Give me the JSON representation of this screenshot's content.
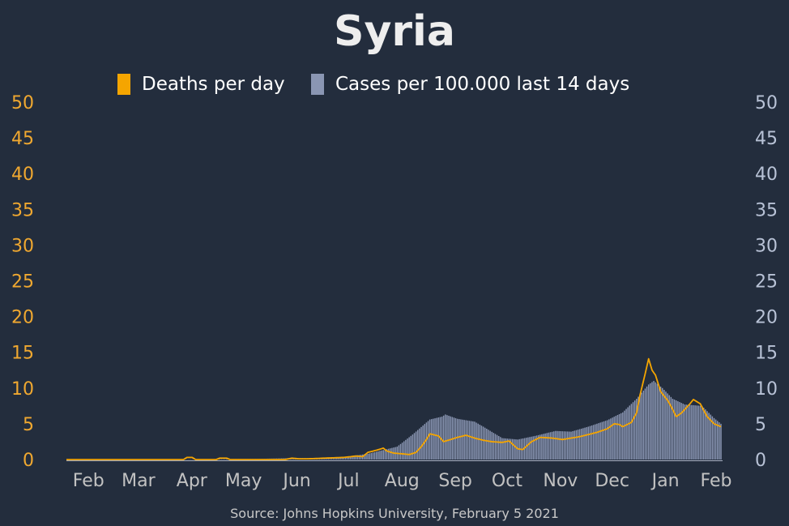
{
  "chart_data": {
    "type": "bar+line",
    "title": "Syria",
    "source": "Source: Johns Hopkins University, February 5 2021",
    "legend": [
      {
        "label": "Deaths per day",
        "color": "#f5a500",
        "type": "line",
        "axis": "left"
      },
      {
        "label": "Cases per 100.000 last 14 days",
        "color": "#8a96b3",
        "type": "bar",
        "axis": "right"
      }
    ],
    "legend_position": "top-center",
    "y_left": {
      "min": 0,
      "max": 50,
      "ticks": [
        "0",
        "5",
        "10",
        "15",
        "20",
        "25",
        "30",
        "35",
        "40",
        "45",
        "50"
      ],
      "color": "#f0a830"
    },
    "y_right": {
      "min": 0,
      "max": 50,
      "ticks": [
        "0",
        "5",
        "10",
        "15",
        "20",
        "25",
        "30",
        "35",
        "40",
        "45",
        "50"
      ],
      "color": "#b8c2d6"
    },
    "x_axis": {
      "start": "2020-01-22",
      "end": "2021-02-05",
      "ticks": [
        {
          "label": "Feb",
          "date": "2020-02-01"
        },
        {
          "label": "Mar",
          "date": "2020-03-01"
        },
        {
          "label": "Apr",
          "date": "2020-04-01"
        },
        {
          "label": "May",
          "date": "2020-05-01"
        },
        {
          "label": "Jun",
          "date": "2020-06-01"
        },
        {
          "label": "Jul",
          "date": "2020-07-01"
        },
        {
          "label": "Aug",
          "date": "2020-08-01"
        },
        {
          "label": "Sep",
          "date": "2020-09-01"
        },
        {
          "label": "Oct",
          "date": "2020-10-01"
        },
        {
          "label": "Nov",
          "date": "2020-11-01"
        },
        {
          "label": "Dec",
          "date": "2020-12-01"
        },
        {
          "label": "Jan",
          "date": "2021-01-01"
        },
        {
          "label": "Feb",
          "date": "2021-02-01"
        }
      ]
    },
    "grid": false,
    "series": [
      {
        "name": "Cases per 100.000 last 14 days",
        "type": "bar",
        "axis": "right",
        "color": "#8a96b3",
        "points": [
          [
            "2020-01-22",
            0
          ],
          [
            "2020-03-22",
            0
          ],
          [
            "2020-04-10",
            0.05
          ],
          [
            "2020-05-10",
            0.08
          ],
          [
            "2020-06-01",
            0.2
          ],
          [
            "2020-06-15",
            0.2
          ],
          [
            "2020-07-01",
            0.35
          ],
          [
            "2020-07-15",
            0.8
          ],
          [
            "2020-08-01",
            1.8
          ],
          [
            "2020-08-10",
            3.5
          ],
          [
            "2020-08-20",
            5.6
          ],
          [
            "2020-08-27",
            6.0
          ],
          [
            "2020-08-29",
            6.3
          ],
          [
            "2020-09-05",
            5.7
          ],
          [
            "2020-09-15",
            5.3
          ],
          [
            "2020-09-20",
            4.6
          ],
          [
            "2020-10-01",
            3.0
          ],
          [
            "2020-10-10",
            2.8
          ],
          [
            "2020-10-20",
            3.3
          ],
          [
            "2020-11-01",
            4.0
          ],
          [
            "2020-11-10",
            3.9
          ],
          [
            "2020-11-20",
            4.6
          ],
          [
            "2020-12-01",
            5.5
          ],
          [
            "2020-12-10",
            6.6
          ],
          [
            "2020-12-18",
            8.5
          ],
          [
            "2020-12-25",
            10.5
          ],
          [
            "2020-12-28",
            11.0
          ],
          [
            "2021-01-02",
            10.0
          ],
          [
            "2021-01-08",
            8.5
          ],
          [
            "2021-01-15",
            7.7
          ],
          [
            "2021-01-25",
            7.5
          ],
          [
            "2021-02-01",
            5.8
          ],
          [
            "2021-02-05",
            5.0
          ]
        ]
      },
      {
        "name": "Deaths per day",
        "type": "line",
        "axis": "left",
        "color": "#f5a500",
        "points": [
          [
            "2020-01-22",
            0
          ],
          [
            "2020-03-30",
            0
          ],
          [
            "2020-04-01",
            0.3
          ],
          [
            "2020-04-04",
            0.3
          ],
          [
            "2020-04-06",
            0
          ],
          [
            "2020-04-18",
            0
          ],
          [
            "2020-04-20",
            0.2
          ],
          [
            "2020-04-24",
            0.2
          ],
          [
            "2020-04-26",
            0
          ],
          [
            "2020-05-28",
            0
          ],
          [
            "2020-06-01",
            0.2
          ],
          [
            "2020-06-05",
            0.1
          ],
          [
            "2020-06-10",
            0.1
          ],
          [
            "2020-06-20",
            0.2
          ],
          [
            "2020-07-01",
            0.3
          ],
          [
            "2020-07-05",
            0.4
          ],
          [
            "2020-07-08",
            0.5
          ],
          [
            "2020-07-12",
            0.4
          ],
          [
            "2020-07-15",
            1.0
          ],
          [
            "2020-07-20",
            1.3
          ],
          [
            "2020-07-24",
            1.6
          ],
          [
            "2020-07-26",
            1.2
          ],
          [
            "2020-07-30",
            0.9
          ],
          [
            "2020-08-04",
            0.8
          ],
          [
            "2020-08-08",
            0.7
          ],
          [
            "2020-08-12",
            1.0
          ],
          [
            "2020-08-15",
            1.8
          ],
          [
            "2020-08-18",
            2.8
          ],
          [
            "2020-08-20",
            3.6
          ],
          [
            "2020-08-25",
            3.3
          ],
          [
            "2020-08-28",
            2.5
          ],
          [
            "2020-09-01",
            2.8
          ],
          [
            "2020-09-05",
            3.1
          ],
          [
            "2020-09-10",
            3.4
          ],
          [
            "2020-09-15",
            3.0
          ],
          [
            "2020-09-20",
            2.7
          ],
          [
            "2020-09-25",
            2.5
          ],
          [
            "2020-10-01",
            2.4
          ],
          [
            "2020-10-05",
            2.6
          ],
          [
            "2020-10-10",
            1.5
          ],
          [
            "2020-10-13",
            1.4
          ],
          [
            "2020-10-18",
            2.5
          ],
          [
            "2020-10-23",
            3.1
          ],
          [
            "2020-10-30",
            3.0
          ],
          [
            "2020-11-05",
            2.8
          ],
          [
            "2020-11-15",
            3.2
          ],
          [
            "2020-11-25",
            3.8
          ],
          [
            "2020-12-01",
            4.3
          ],
          [
            "2020-12-05",
            5.0
          ],
          [
            "2020-12-08",
            4.9
          ],
          [
            "2020-12-10",
            4.6
          ],
          [
            "2020-12-15",
            5.2
          ],
          [
            "2020-12-18",
            6.5
          ],
          [
            "2020-12-20",
            9.0
          ],
          [
            "2020-12-23",
            12.0
          ],
          [
            "2020-12-25",
            14.1
          ],
          [
            "2020-12-27",
            12.5
          ],
          [
            "2020-12-29",
            11.8
          ],
          [
            "2021-01-01",
            9.5
          ],
          [
            "2021-01-05",
            8.3
          ],
          [
            "2021-01-08",
            7.0
          ],
          [
            "2021-01-10",
            6.0
          ],
          [
            "2021-01-13",
            6.5
          ],
          [
            "2021-01-18",
            7.8
          ],
          [
            "2021-01-20",
            8.4
          ],
          [
            "2021-01-24",
            7.8
          ],
          [
            "2021-01-28",
            6.0
          ],
          [
            "2021-02-01",
            5.0
          ],
          [
            "2021-02-05",
            4.6
          ]
        ]
      }
    ]
  }
}
